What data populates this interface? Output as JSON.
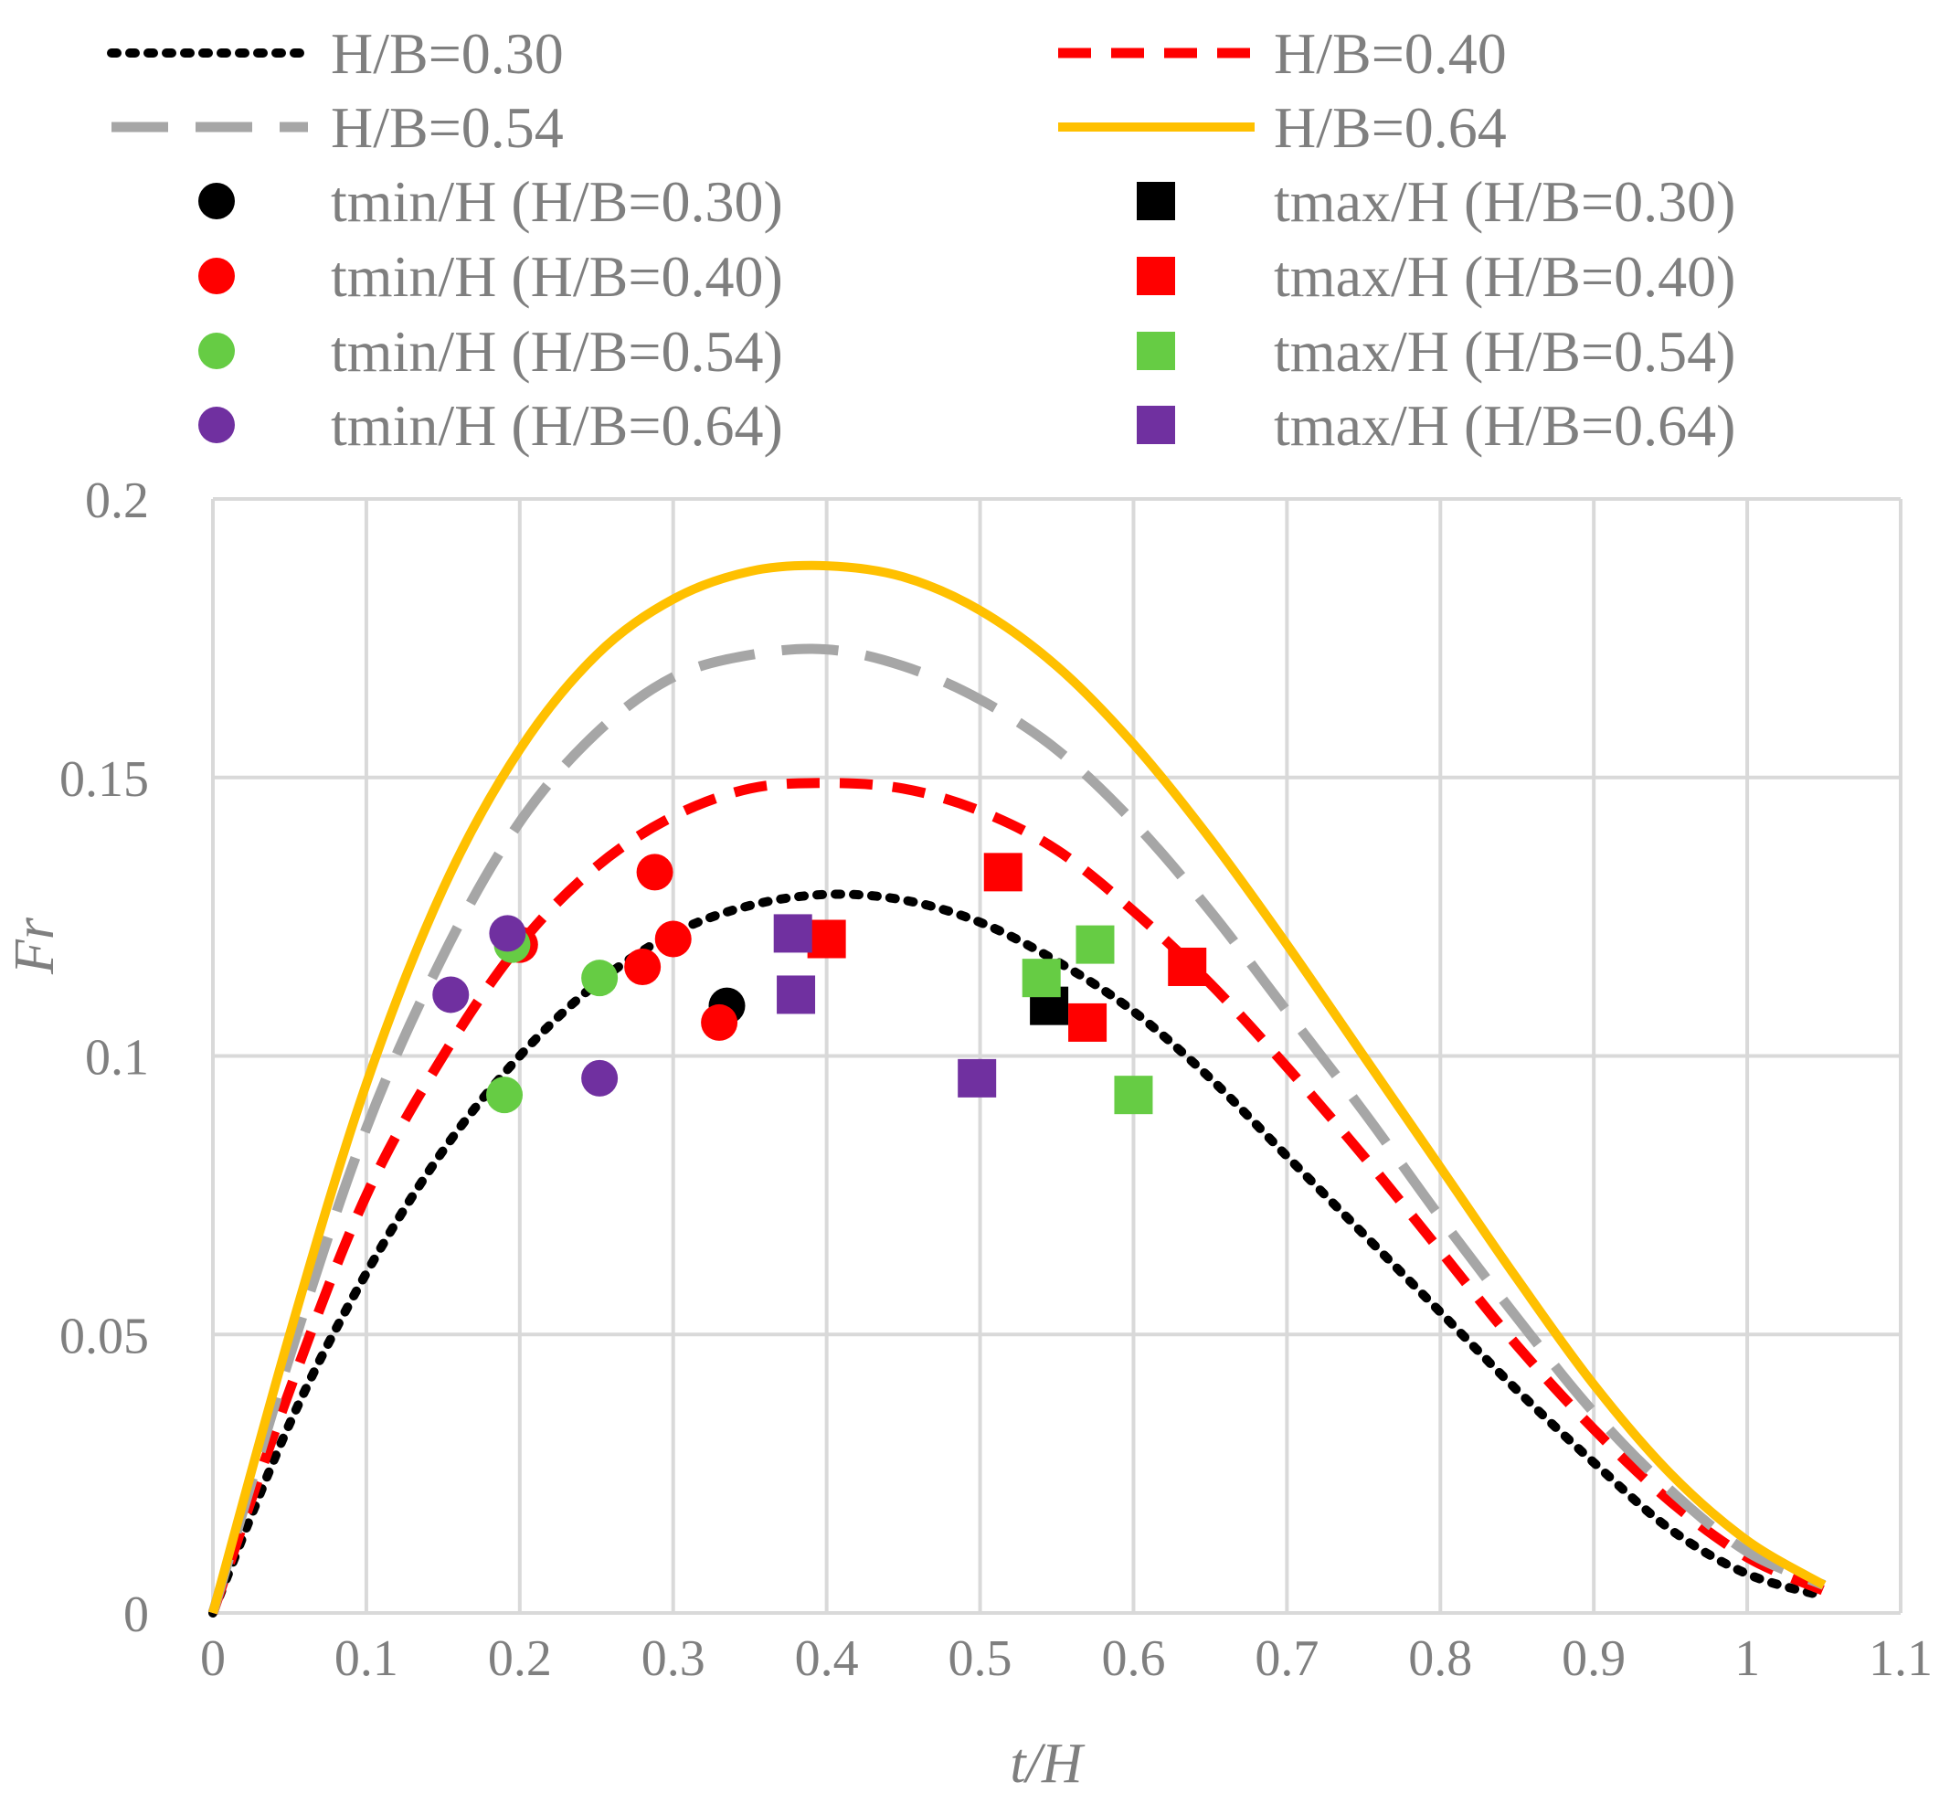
{
  "chart_data": {
    "type": "line",
    "title": "",
    "xlabel": "t/H",
    "ylabel": "Fr",
    "xlim": [
      0,
      1.1
    ],
    "ylim": [
      0,
      0.2
    ],
    "x_ticks": [
      "0",
      "0.1",
      "0.2",
      "0.3",
      "0.4",
      "0.5",
      "0.6",
      "0.7",
      "0.8",
      "0.9",
      "1",
      "1.1"
    ],
    "y_ticks": [
      "0",
      "0.05",
      "0.1",
      "0.15",
      "0.2"
    ],
    "grid": true,
    "legend_position": "top",
    "curves": [
      {
        "name": "H/B=0.30",
        "color": "#000000",
        "style": "dotted",
        "x": [
          0,
          0.05,
          0.1,
          0.15,
          0.2,
          0.25,
          0.3,
          0.35,
          0.4,
          0.45,
          0.5,
          0.55,
          0.6,
          0.65,
          0.7,
          0.75,
          0.8,
          0.85,
          0.9,
          0.95,
          1.0,
          1.05
        ],
        "y": [
          0,
          0.034,
          0.061,
          0.083,
          0.1,
          0.113,
          0.122,
          0.127,
          0.129,
          0.128,
          0.124,
          0.117,
          0.108,
          0.096,
          0.082,
          0.068,
          0.054,
          0.04,
          0.027,
          0.015,
          0.007,
          0.003
        ]
      },
      {
        "name": "H/B=0.40",
        "color": "#ff0000",
        "style": "dashed",
        "x": [
          0,
          0.05,
          0.1,
          0.15,
          0.2,
          0.25,
          0.3,
          0.35,
          0.4,
          0.45,
          0.5,
          0.55,
          0.6,
          0.65,
          0.7,
          0.75,
          0.8,
          0.85,
          0.9,
          0.95,
          1.0,
          1.05
        ],
        "y": [
          0,
          0.04,
          0.075,
          0.1,
          0.12,
          0.134,
          0.143,
          0.148,
          0.149,
          0.148,
          0.144,
          0.137,
          0.126,
          0.113,
          0.098,
          0.082,
          0.065,
          0.048,
          0.033,
          0.02,
          0.01,
          0.004
        ]
      },
      {
        "name": "H/B=0.54",
        "color": "#a6a6a6",
        "style": "longdash",
        "x": [
          0,
          0.05,
          0.1,
          0.15,
          0.2,
          0.25,
          0.3,
          0.35,
          0.4,
          0.45,
          0.5,
          0.55,
          0.6,
          0.65,
          0.7,
          0.75,
          0.8,
          0.85,
          0.9,
          0.95,
          1.0,
          1.05
        ],
        "y": [
          0,
          0.046,
          0.087,
          0.118,
          0.142,
          0.158,
          0.168,
          0.172,
          0.173,
          0.17,
          0.164,
          0.155,
          0.142,
          0.126,
          0.108,
          0.09,
          0.071,
          0.053,
          0.036,
          0.022,
          0.011,
          0.005
        ]
      },
      {
        "name": "H/B=0.64",
        "color": "#ffc000",
        "style": "solid",
        "x": [
          0,
          0.05,
          0.1,
          0.15,
          0.2,
          0.25,
          0.3,
          0.35,
          0.4,
          0.45,
          0.5,
          0.55,
          0.6,
          0.65,
          0.7,
          0.75,
          0.8,
          0.85,
          0.9,
          0.95,
          1.0,
          1.05
        ],
        "y": [
          0,
          0.05,
          0.095,
          0.13,
          0.155,
          0.172,
          0.182,
          0.187,
          0.188,
          0.186,
          0.18,
          0.17,
          0.156,
          0.139,
          0.12,
          0.1,
          0.08,
          0.06,
          0.041,
          0.025,
          0.013,
          0.005
        ]
      }
    ],
    "markers": [
      {
        "name": "tmin/H (H/B=0.30)",
        "color": "#000000",
        "shape": "circle",
        "points": [
          [
            0.335,
            0.109
          ]
        ]
      },
      {
        "name": "tmax/H (H/B=0.30)",
        "color": "#000000",
        "shape": "square",
        "points": [
          [
            0.545,
            0.109
          ]
        ]
      },
      {
        "name": "tmin/H (H/B=0.40)",
        "color": "#ff0000",
        "shape": "circle",
        "points": [
          [
            0.2,
            0.12
          ],
          [
            0.28,
            0.116
          ],
          [
            0.288,
            0.133
          ],
          [
            0.3,
            0.121
          ],
          [
            0.33,
            0.106
          ]
        ]
      },
      {
        "name": "tmax/H (H/B=0.40)",
        "color": "#ff0000",
        "shape": "square",
        "points": [
          [
            0.4,
            0.121
          ],
          [
            0.515,
            0.133
          ],
          [
            0.57,
            0.106
          ],
          [
            0.635,
            0.116
          ]
        ]
      },
      {
        "name": "tmin/H (H/B=0.54)",
        "color": "#66cc44",
        "shape": "circle",
        "points": [
          [
            0.19,
            0.093
          ],
          [
            0.195,
            0.12
          ],
          [
            0.252,
            0.114
          ]
        ]
      },
      {
        "name": "tmax/H (H/B=0.54)",
        "color": "#66cc44",
        "shape": "square",
        "points": [
          [
            0.54,
            0.114
          ],
          [
            0.575,
            0.12
          ],
          [
            0.6,
            0.093
          ]
        ]
      },
      {
        "name": "tmin/H (H/B=0.64)",
        "color": "#7030a0",
        "shape": "circle",
        "points": [
          [
            0.155,
            0.111
          ],
          [
            0.192,
            0.122
          ],
          [
            0.252,
            0.096
          ]
        ]
      },
      {
        "name": "tmax/H (H/B=0.64)",
        "color": "#7030a0",
        "shape": "square",
        "points": [
          [
            0.378,
            0.122
          ],
          [
            0.38,
            0.111
          ],
          [
            0.498,
            0.096
          ]
        ]
      }
    ]
  }
}
